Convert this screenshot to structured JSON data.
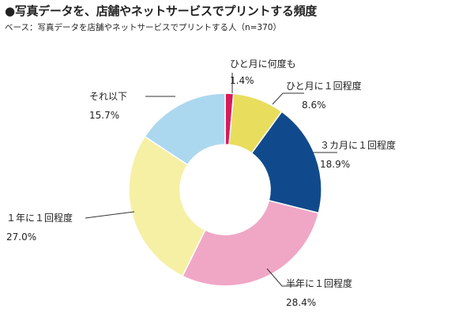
{
  "title": "●写真データを、店舗やネットサービスでプリントする頻度",
  "subtitle": "ベース：写真データを店舗やネットサービスでプリントする人（n=370）",
  "chart_data": {
    "type": "pie",
    "donut": true,
    "title": "写真データを、店舗やネットサービスでプリントする頻度",
    "base_note": "n=370",
    "slices": [
      {
        "label": "ひと月に何度も",
        "value": 1.4,
        "display": "1.4%",
        "color": "#d81b5a"
      },
      {
        "label": "ひと月に１回程度",
        "value": 8.6,
        "display": "8.6%",
        "color": "#e9dd5d"
      },
      {
        "label": "３カ月に１回程度",
        "value": 18.9,
        "display": "18.9%",
        "color": "#114a8c"
      },
      {
        "label": "半年に１回程度",
        "value": 28.4,
        "display": "28.4%",
        "color": "#f0a7c6"
      },
      {
        "label": "１年に１回程度",
        "value": 27.0,
        "display": "27.0%",
        "color": "#f6f0a5"
      },
      {
        "label": "それ以下",
        "value": 15.7,
        "display": "15.7%",
        "color": "#acd8ef"
      }
    ]
  }
}
